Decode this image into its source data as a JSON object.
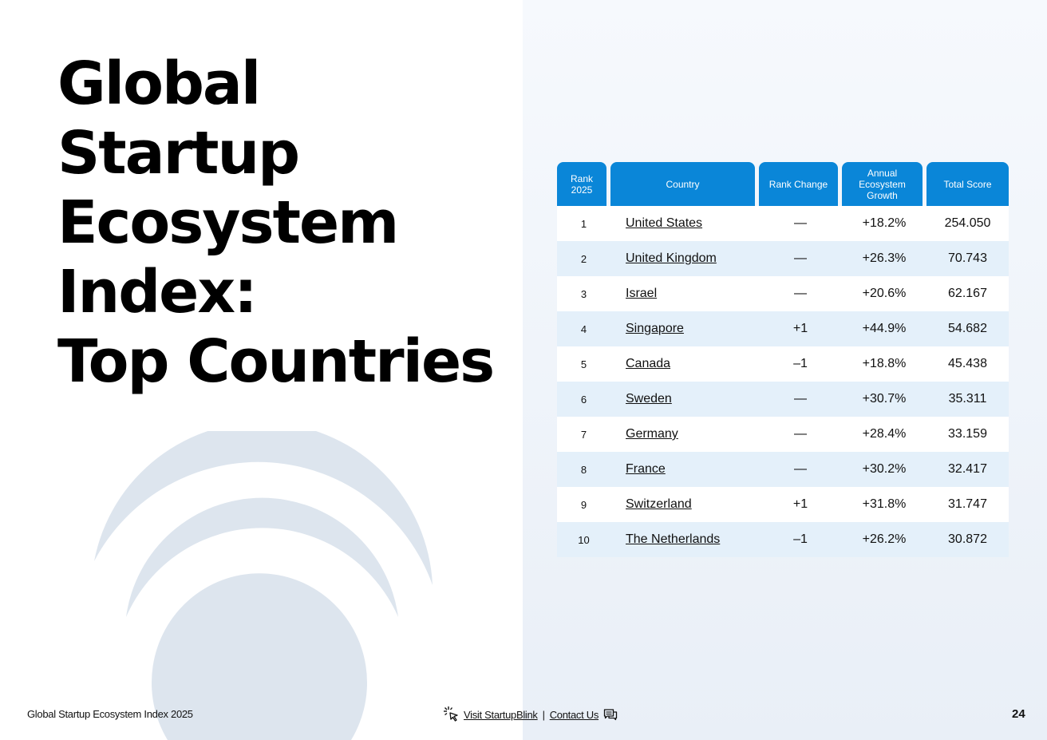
{
  "title_lines": [
    "Global",
    "Startup",
    "Ecosystem",
    "Index:",
    "Top Countries"
  ],
  "table": {
    "headers": {
      "rank": "Rank 2025",
      "country": "Country",
      "change": "Rank Change",
      "growth": "Annual Ecosystem Growth",
      "score": "Total Score"
    },
    "rows": [
      {
        "rank": "1",
        "country": "United States",
        "change": "—",
        "growth": "+18.2%",
        "score": "254.050"
      },
      {
        "rank": "2",
        "country": "United Kingdom",
        "change": "—",
        "growth": "+26.3%",
        "score": "70.743"
      },
      {
        "rank": "3",
        "country": "Israel",
        "change": "—",
        "growth": "+20.6%",
        "score": "62.167"
      },
      {
        "rank": "4",
        "country": "Singapore",
        "change": "+1",
        "growth": "+44.9%",
        "score": "54.682"
      },
      {
        "rank": "5",
        "country": "Canada",
        "change": "–1",
        "growth": "+18.8%",
        "score": "45.438"
      },
      {
        "rank": "6",
        "country": "Sweden",
        "change": "—",
        "growth": "+30.7%",
        "score": "35.311"
      },
      {
        "rank": "7",
        "country": "Germany",
        "change": "—",
        "growth": "+28.4%",
        "score": "33.159"
      },
      {
        "rank": "8",
        "country": "France",
        "change": "—",
        "growth": "+30.2%",
        "score": "32.417"
      },
      {
        "rank": "9",
        "country": "Switzerland",
        "change": "+1",
        "growth": "+31.8%",
        "score": "31.747"
      },
      {
        "rank": "10",
        "country": "The Netherlands",
        "change": "–1",
        "growth": "+26.2%",
        "score": "30.872"
      }
    ]
  },
  "footer": {
    "doc_title": "Global Startup Ecosystem Index 2025",
    "visit_link": "Visit StartupBlink",
    "separator": "|",
    "contact_link": "Contact Us",
    "page_number": "24"
  },
  "colors": {
    "header_blue": "#0a86d8",
    "row_alt": "#e4f0fa",
    "decor": "#dde5ee"
  },
  "icons": [
    "cursor-click-icon",
    "chat-icon"
  ]
}
